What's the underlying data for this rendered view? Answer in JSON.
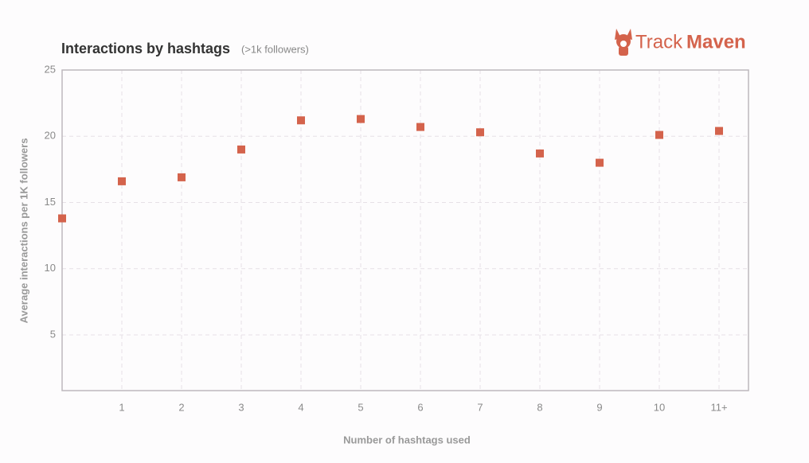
{
  "logo": {
    "part1": "Track",
    "part2": "Maven"
  },
  "chart_data": {
    "type": "scatter",
    "title": "Interactions by hashtags",
    "subtitle": "(>1k followers)",
    "x_label": "Number of hashtags used",
    "y_label": "Average interactions per 1K followers",
    "categories": [
      null,
      "1",
      "2",
      "3",
      "4",
      "5",
      "6",
      "7",
      "8",
      "9",
      "10",
      "11+"
    ],
    "values": [
      13.8,
      16.6,
      16.9,
      19.0,
      21.2,
      21.3,
      20.7,
      20.3,
      18.7,
      18.0,
      20.1,
      20.4
    ],
    "color": "#d4634c",
    "ylim": [
      0.8,
      25
    ],
    "yticks": [
      5,
      10,
      15,
      20,
      25
    ],
    "grid": true
  }
}
